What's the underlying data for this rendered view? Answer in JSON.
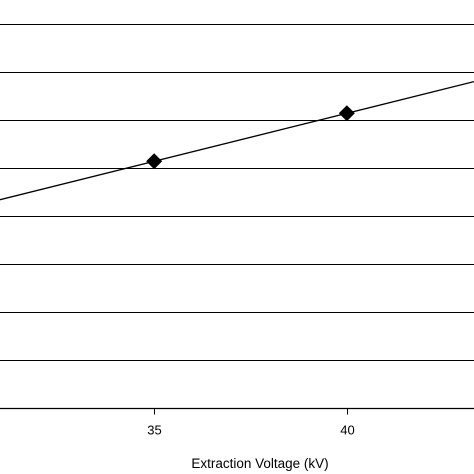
{
  "chart_data": {
    "type": "line",
    "title": "",
    "xlabel": "Extraction Voltage (kV)",
    "ylabel": "",
    "x_ticks": [
      35,
      40
    ],
    "xlim": [
      31,
      43.3
    ],
    "ylim": [
      0,
      8.5
    ],
    "y_gridlines": [
      1,
      2,
      3,
      4,
      5,
      6,
      7,
      8
    ],
    "grid": true,
    "legend": "none",
    "series": [
      {
        "markers": [
          {
            "x": 35,
            "y": 5.14
          },
          {
            "x": 40,
            "y": 6.14
          }
        ],
        "trendline": [
          {
            "x": 31,
            "y": 4.34
          },
          {
            "x": 43.3,
            "y": 6.8
          }
        ],
        "marker": "diamond",
        "color": "#000000"
      }
    ]
  }
}
